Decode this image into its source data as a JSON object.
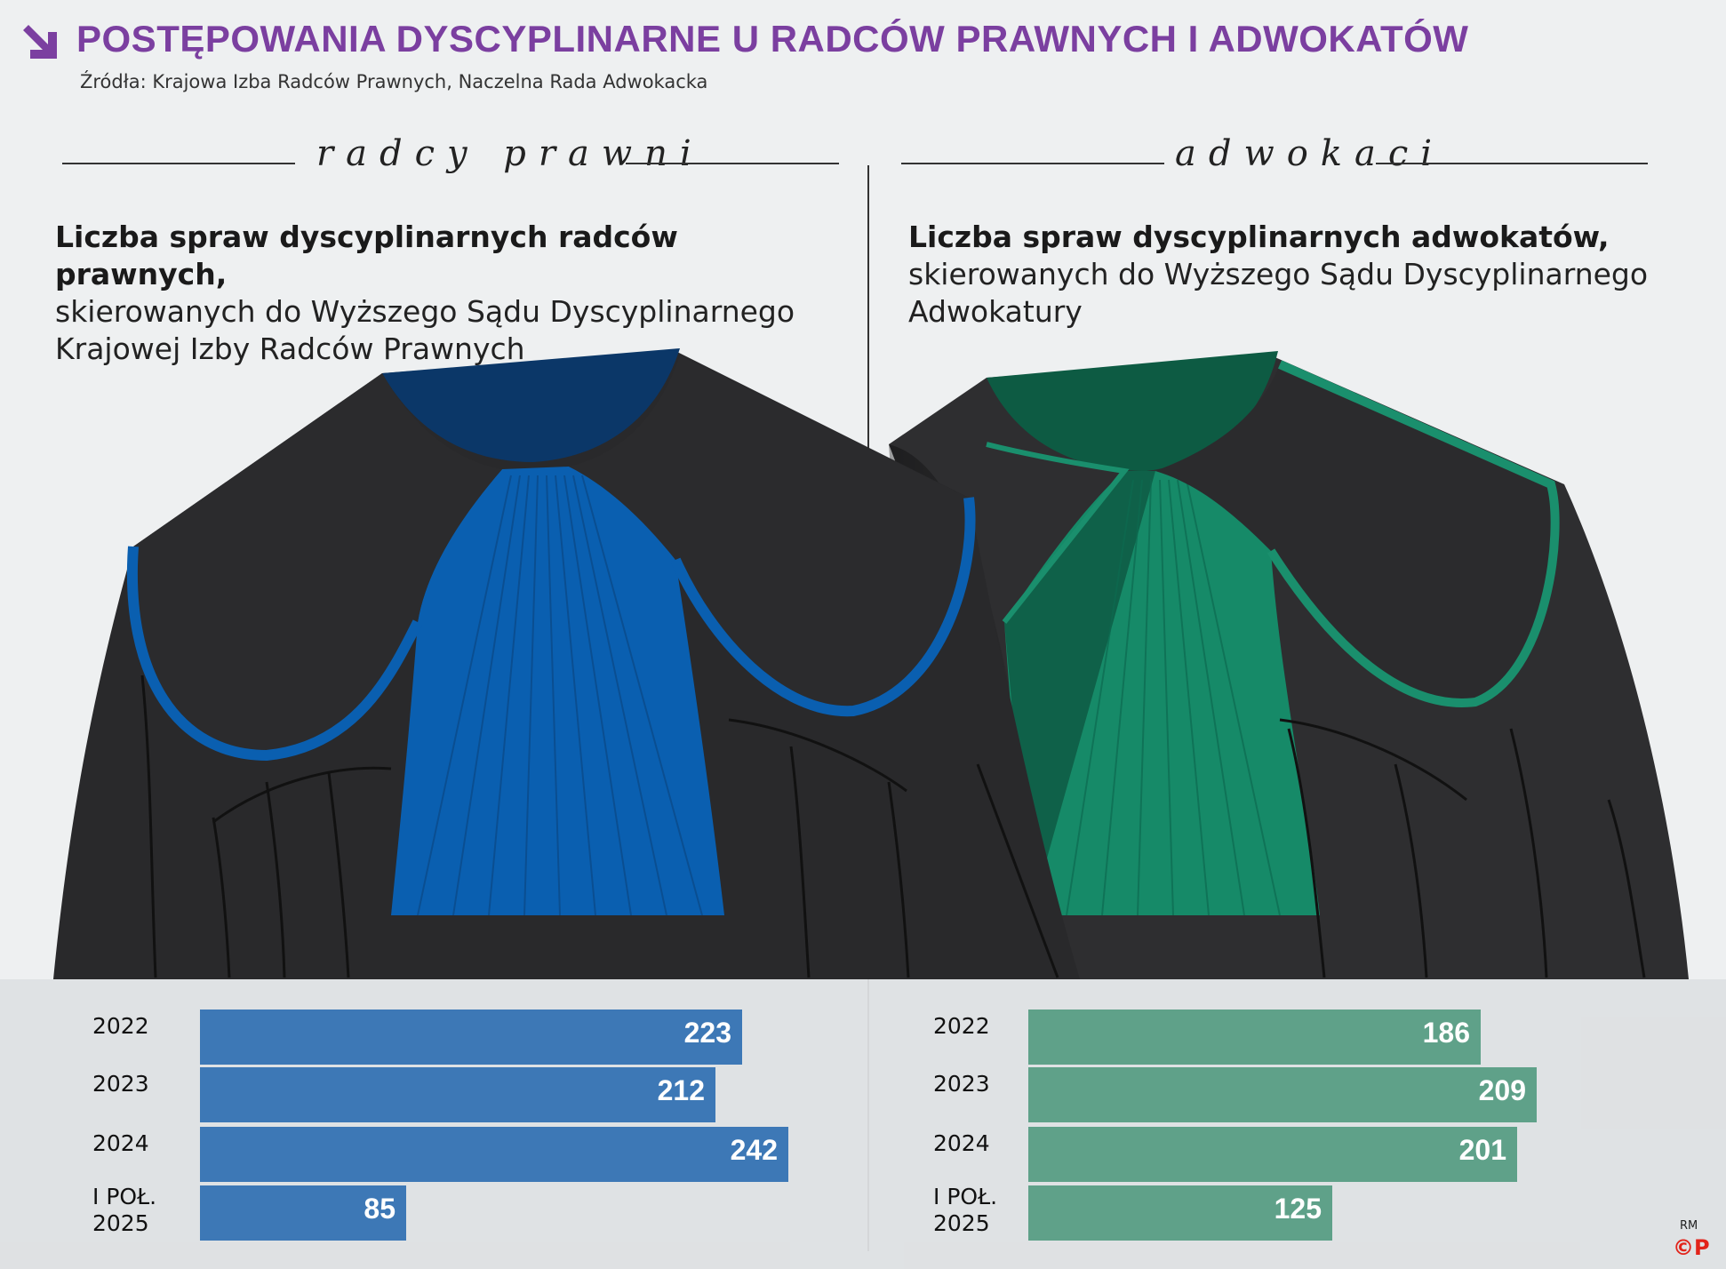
{
  "header": {
    "title": "POSTĘPOWANIA DYSCYPLINARNE U RADCÓW PRAWNYCH I ADWOKATÓW",
    "source": "Źródła: Krajowa Izba Radców Prawnych, Naczelna Rada Adwokacka"
  },
  "sections": {
    "left": {
      "label": "radcy prawni",
      "subtitle_bold": "Liczba spraw dyscyplinarnych radców prawnych,",
      "subtitle_line1": "skierowanych do Wyższego Sądu Dyscyplinarnego",
      "subtitle_line2": "Krajowej Izby Radców Prawnych"
    },
    "right": {
      "label": "adwokaci",
      "subtitle_bold": "Liczba spraw dyscyplinarnych adwokatów,",
      "subtitle_line1": "skierowanych do Wyższego Sądu Dyscyplinarnego",
      "subtitle_line2": "Adwokatury"
    }
  },
  "colors": {
    "title": "#7b3fa0",
    "left_bar": "#3d78b6",
    "right_bar": "#5fa189",
    "left_robe_accent": "#0a5fb0",
    "right_robe_accent": "#168a68",
    "robe": "#2b2b2d"
  },
  "chart_data": [
    {
      "type": "bar",
      "orientation": "horizontal",
      "title": "Liczba spraw dyscyplinarnych radców prawnych, skierowanych do Wyższego Sądu Dyscyplinarnego Krajowej Izby Radców Prawnych",
      "categories": [
        "2022",
        "2023",
        "2024",
        "I POŁ. 2025"
      ],
      "values": [
        223,
        212,
        242,
        85
      ],
      "xlim": [
        0,
        250
      ]
    },
    {
      "type": "bar",
      "orientation": "horizontal",
      "title": "Liczba spraw dyscyplinarnych adwokatów, skierowanych do Wyższego Sądu Dyscyplinarnego Adwokatury",
      "categories": [
        "2022",
        "2023",
        "2024",
        "I POŁ. 2025"
      ],
      "values": [
        186,
        209,
        201,
        125
      ],
      "xlim": [
        0,
        250
      ]
    }
  ],
  "credits": {
    "author": "RM",
    "logo": "©P"
  }
}
